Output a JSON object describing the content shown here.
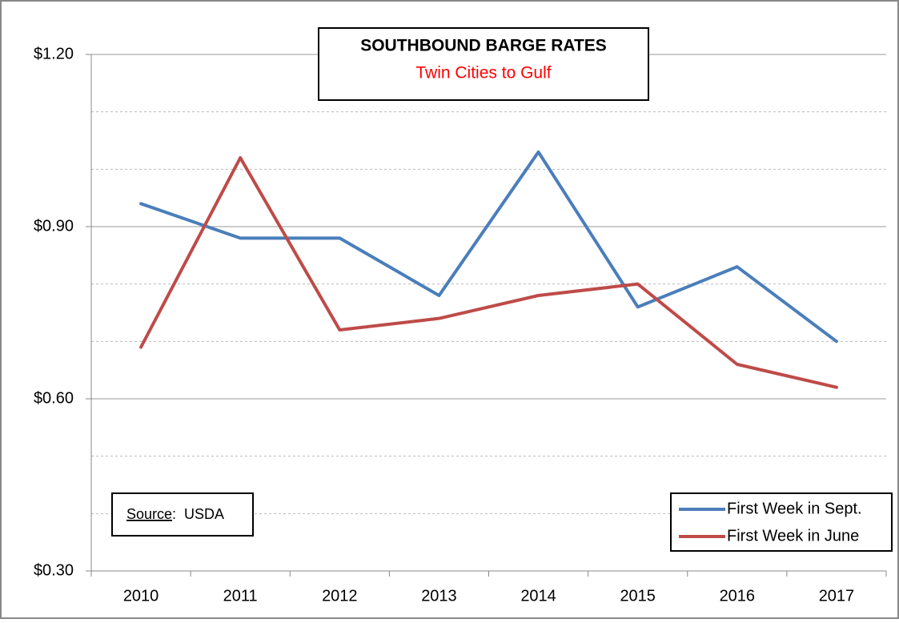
{
  "chart_data": {
    "type": "line",
    "title": "SOUTHBOUND BARGE RATES",
    "subtitle": "Twin Cities to Gulf",
    "source_label": "Source",
    "source_text": ":  USDA",
    "categories": [
      "2010",
      "2011",
      "2012",
      "2013",
      "2014",
      "2015",
      "2016",
      "2017"
    ],
    "series": [
      {
        "name": "First Week in Sept.",
        "color": "#4a7ebb",
        "values": [
          0.94,
          0.88,
          0.88,
          0.78,
          1.03,
          0.76,
          0.83,
          0.7
        ]
      },
      {
        "name": "First Week in June",
        "color": "#be4b48",
        "values": [
          0.69,
          1.02,
          0.72,
          0.74,
          0.78,
          0.8,
          0.66,
          0.62
        ]
      }
    ],
    "ylim": [
      0.3,
      1.2
    ],
    "yticks": [
      {
        "value": 0.3,
        "label": "$0.30"
      },
      {
        "value": 0.6,
        "label": "$0.60"
      },
      {
        "value": 0.9,
        "label": "$0.90"
      },
      {
        "value": 1.2,
        "label": "$1.20"
      }
    ],
    "minor_yticks": [
      0.4,
      0.5,
      0.7,
      0.8,
      1.0,
      1.1
    ],
    "grid": true,
    "legend": "lower right"
  }
}
